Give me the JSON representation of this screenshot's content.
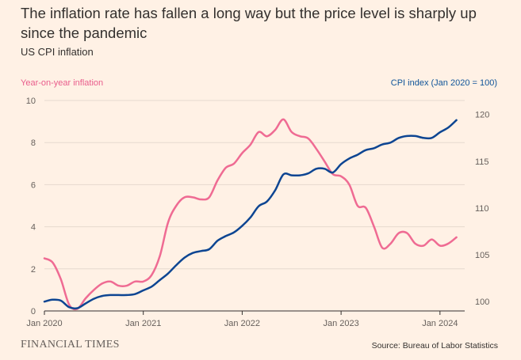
{
  "title": "The inflation rate has fallen a long way but the price level is sharply up since the pandemic",
  "subtitle": "US CPI inflation",
  "footer": {
    "brand": "FINANCIAL TIMES",
    "source": "Source: Bureau of Labor Statistics"
  },
  "colors": {
    "background": "#fff1e5",
    "inflation": "#ef6b93",
    "cpi": "#0d4592",
    "grid": "#e6d9ce"
  },
  "chart_data": {
    "type": "line",
    "grid": true,
    "left_axis": {
      "title": "Year-on-year inflation",
      "range": [
        0,
        10
      ],
      "ticks": [
        0,
        2,
        4,
        6,
        8,
        10
      ],
      "tick_labels": [
        "0",
        "2",
        "4",
        "6",
        "8",
        "10"
      ]
    },
    "right_axis": {
      "title": "CPI index (Jan 2020 = 100)",
      "range": [
        99,
        121.5
      ],
      "ticks": [
        100,
        105,
        110,
        115,
        120
      ],
      "tick_labels": [
        "100",
        "105",
        "110",
        "115",
        "120"
      ]
    },
    "x_axis": {
      "range": [
        "2020-01",
        "2024-04"
      ],
      "ticks": [
        "2020-01",
        "2021-01",
        "2022-01",
        "2023-01",
        "2024-01"
      ],
      "tick_labels": [
        "Jan 2020",
        "Jan 2021",
        "Jan 2022",
        "Jan 2023",
        "Jan 2024"
      ]
    },
    "months": [
      "2020-01",
      "2020-02",
      "2020-03",
      "2020-04",
      "2020-05",
      "2020-06",
      "2020-07",
      "2020-08",
      "2020-09",
      "2020-10",
      "2020-11",
      "2020-12",
      "2021-01",
      "2021-02",
      "2021-03",
      "2021-04",
      "2021-05",
      "2021-06",
      "2021-07",
      "2021-08",
      "2021-09",
      "2021-10",
      "2021-11",
      "2021-12",
      "2022-01",
      "2022-02",
      "2022-03",
      "2022-04",
      "2022-05",
      "2022-06",
      "2022-07",
      "2022-08",
      "2022-09",
      "2022-10",
      "2022-11",
      "2022-12",
      "2023-01",
      "2023-02",
      "2023-03",
      "2023-04",
      "2023-05",
      "2023-06",
      "2023-07",
      "2023-08",
      "2023-09",
      "2023-10",
      "2023-11",
      "2023-12",
      "2024-01",
      "2024-02",
      "2024-03"
    ],
    "series": [
      {
        "name": "Year-on-year inflation",
        "axis": "left",
        "color": "#ef6b93",
        "values": [
          2.5,
          2.3,
          1.5,
          0.3,
          0.1,
          0.6,
          1.0,
          1.3,
          1.4,
          1.2,
          1.2,
          1.4,
          1.4,
          1.7,
          2.6,
          4.2,
          5.0,
          5.4,
          5.4,
          5.3,
          5.4,
          6.2,
          6.8,
          7.0,
          7.5,
          7.9,
          8.5,
          8.3,
          8.6,
          9.1,
          8.5,
          8.3,
          8.2,
          7.7,
          7.1,
          6.5,
          6.4,
          6.0,
          5.0,
          4.9,
          4.0,
          3.0,
          3.2,
          3.7,
          3.7,
          3.2,
          3.1,
          3.4,
          3.1,
          3.2,
          3.5
        ]
      },
      {
        "name": "CPI index (Jan 2020 = 100)",
        "axis": "right",
        "color": "#0d4592",
        "values": [
          100.0,
          100.2,
          100.1,
          99.4,
          99.3,
          99.8,
          100.3,
          100.6,
          100.7,
          100.7,
          100.7,
          100.8,
          101.2,
          101.6,
          102.3,
          103.0,
          103.9,
          104.7,
          105.2,
          105.4,
          105.6,
          106.5,
          107.0,
          107.4,
          108.1,
          109.0,
          110.2,
          110.7,
          111.9,
          113.6,
          113.5,
          113.5,
          113.7,
          114.2,
          114.2,
          113.8,
          114.7,
          115.3,
          115.7,
          116.2,
          116.4,
          116.8,
          117.0,
          117.5,
          117.7,
          117.7,
          117.5,
          117.5,
          118.1,
          118.6,
          119.4
        ]
      }
    ]
  }
}
